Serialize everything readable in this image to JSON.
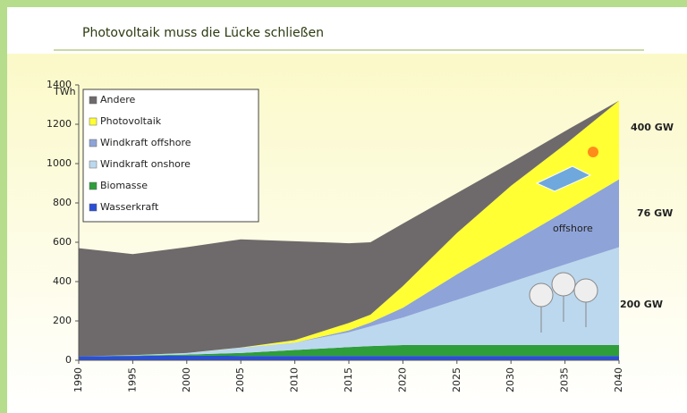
{
  "chart_data": {
    "type": "stacked_area",
    "title": "Photovoltaik muss die Lücke schließen",
    "y_label": "TWh",
    "x": [
      1990,
      1995,
      2000,
      2005,
      2010,
      2015,
      2017,
      2020,
      2025,
      2030,
      2035,
      2040
    ],
    "xlim": [
      1990,
      2040
    ],
    "xticks": [
      1990,
      1995,
      2000,
      2005,
      2010,
      2015,
      2020,
      2025,
      2030,
      2035,
      2040
    ],
    "ylim": [
      0,
      1400
    ],
    "yticks": [
      0,
      200,
      400,
      600,
      800,
      1000,
      1200,
      1400
    ],
    "legend": "top-left",
    "series": [
      {
        "name": "Wasserkraft",
        "color": "#2a4fd6",
        "values": [
          20,
          22,
          24,
          22,
          22,
          22,
          22,
          22,
          22,
          22,
          22,
          22
        ]
      },
      {
        "name": "Biomasse",
        "color": "#2e9e3a",
        "values": [
          0,
          2,
          5,
          15,
          30,
          45,
          50,
          55,
          55,
          55,
          55,
          55
        ]
      },
      {
        "name": "Windkraft onshore",
        "color": "#bcd8ee",
        "values": [
          0,
          2,
          8,
          27,
          38,
          75,
          100,
          140,
          230,
          320,
          410,
          498
        ]
      },
      {
        "name": "Windkraft offshore",
        "color": "#8ea3d8",
        "values": [
          0,
          0,
          0,
          0,
          0,
          10,
          20,
          50,
          130,
          200,
          270,
          345
        ]
      },
      {
        "name": "Photovoltaik",
        "color": "#ffff33",
        "values": [
          0,
          0,
          0,
          1,
          12,
          38,
          40,
          110,
          210,
          290,
          340,
          400
        ]
      },
      {
        "name": "Andere",
        "color": "#6e6a6b",
        "values": [
          550,
          514,
          538,
          550,
          503,
          405,
          368,
          318,
          203,
          118,
          68,
          0
        ]
      }
    ],
    "annotations": [
      "400 GW",
      "76 GW",
      "200 GW",
      "offshore"
    ]
  }
}
